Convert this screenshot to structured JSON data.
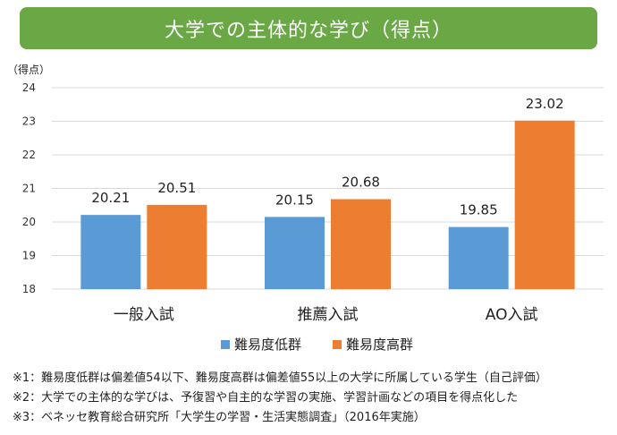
{
  "chart_data": {
    "type": "bar",
    "title": "大学での主体的な学び（得点）",
    "ylabel": "（得点）",
    "xlabel": "",
    "categories": [
      "一般入試",
      "推薦入試",
      "AO入試"
    ],
    "series": [
      {
        "name": "難易度低群",
        "values": [
          20.21,
          20.15,
          19.85
        ],
        "labels": [
          "20.21",
          "20.15",
          "19.85"
        ],
        "color": "#5b9bd5"
      },
      {
        "name": "難易度高群",
        "values": [
          20.51,
          20.68,
          23.02
        ],
        "labels": [
          "20.51",
          "20.68",
          "23.02"
        ],
        "color": "#ed7d31"
      }
    ],
    "ylim": [
      18,
      24
    ],
    "yticks": [
      "18",
      "19",
      "20",
      "21",
      "22",
      "23",
      "24"
    ],
    "grid": true,
    "legend_position": "bottom"
  },
  "title_color": "#6aa845",
  "notes": [
    "※1：難易度低群は偏差値54以下、難易度高群は偏差値55以上の大学に所属している学生（自己評価）",
    "※2：大学での主体的な学びは、予復習や自主的な学習の実施、学習計画などの項目を得点化した",
    "※3：ベネッセ教育総合研究所「大学生の学習・生活実態調査」（2016年実施）"
  ]
}
